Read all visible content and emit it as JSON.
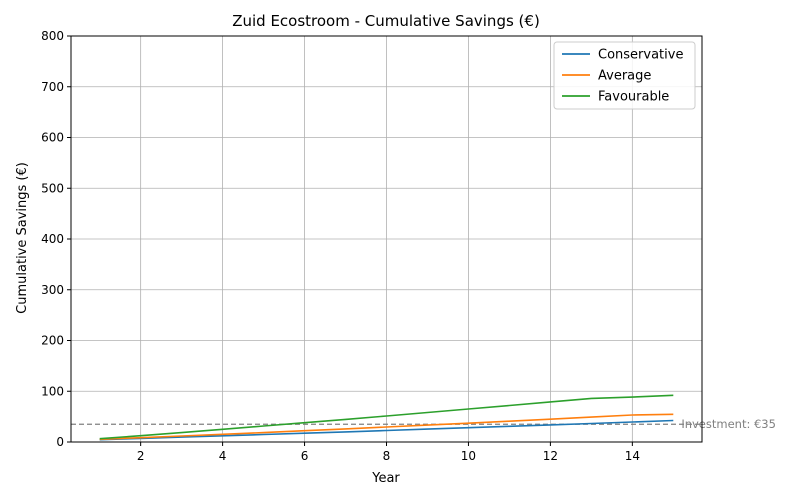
{
  "chart_data": {
    "type": "line",
    "title": "Zuid Ecostroom - Cumulative Savings (€)",
    "xlabel": "Year",
    "ylabel": "Cumulative Savings (€)",
    "xlim": [
      0.3,
      15.7
    ],
    "ylim": [
      0,
      800
    ],
    "xticks": [
      2,
      4,
      6,
      8,
      10,
      12,
      14
    ],
    "yticks": [
      0,
      100,
      200,
      300,
      400,
      500,
      600,
      700,
      800
    ],
    "grid": true,
    "legend_position": "top-right",
    "x": [
      1,
      2,
      3,
      4,
      5,
      6,
      7,
      8,
      9,
      10,
      11,
      12,
      13,
      14,
      15
    ],
    "series": [
      {
        "name": "Conservative",
        "color": "#1f77b4",
        "values": [
          4.6,
          7.0,
          9.6,
          12.2,
          14.8,
          17.4,
          20.0,
          22.7,
          25.4,
          28.1,
          30.9,
          33.7,
          36.5,
          39.4,
          42.3
        ]
      },
      {
        "name": "Average",
        "color": "#ff7f0e",
        "values": [
          5.3,
          8.5,
          11.8,
          15.2,
          18.6,
          22.2,
          25.8,
          29.5,
          33.3,
          37.1,
          41.0,
          45.0,
          49.1,
          53.2,
          54.5
        ]
      },
      {
        "name": "Favourable",
        "color": "#2ca02c",
        "values": [
          6.5,
          12.5,
          18.6,
          25.0,
          31.5,
          38.0,
          44.6,
          51.3,
          58.1,
          65.0,
          72.0,
          79.0,
          86.0,
          88.5,
          92.0
        ]
      }
    ],
    "reference_line": {
      "y": 35,
      "label": "Investment: €35",
      "color": "#808080",
      "style": "dashed"
    }
  }
}
